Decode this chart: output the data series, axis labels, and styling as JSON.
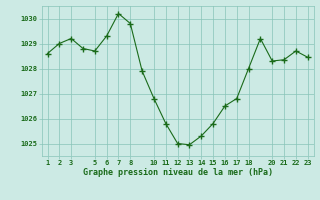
{
  "x": [
    1,
    2,
    3,
    4,
    5,
    6,
    7,
    8,
    9,
    10,
    11,
    12,
    13,
    14,
    15,
    16,
    17,
    18,
    19,
    20,
    21,
    22,
    23
  ],
  "y": [
    1028.6,
    1029.0,
    1029.2,
    1028.8,
    1028.7,
    1029.3,
    1030.2,
    1029.8,
    1027.9,
    1026.8,
    1025.8,
    1025.0,
    1024.95,
    1025.3,
    1025.8,
    1026.5,
    1026.8,
    1028.0,
    1029.2,
    1028.3,
    1028.35,
    1028.7,
    1028.45
  ],
  "xlim": [
    0.5,
    23.5
  ],
  "ylim": [
    1024.5,
    1030.5
  ],
  "yticks": [
    1025,
    1026,
    1027,
    1028,
    1029,
    1030
  ],
  "xticks": [
    1,
    2,
    3,
    5,
    6,
    7,
    8,
    10,
    11,
    12,
    13,
    14,
    15,
    16,
    17,
    18,
    20,
    21,
    22,
    23
  ],
  "xlabel": "Graphe pression niveau de la mer (hPa)",
  "line_color": "#1a6b1a",
  "marker_color": "#1a6b1a",
  "bg_color": "#cceae4",
  "grid_color": "#88c4b8",
  "text_color": "#1a6b1a",
  "title_color": "#1a6b1a"
}
